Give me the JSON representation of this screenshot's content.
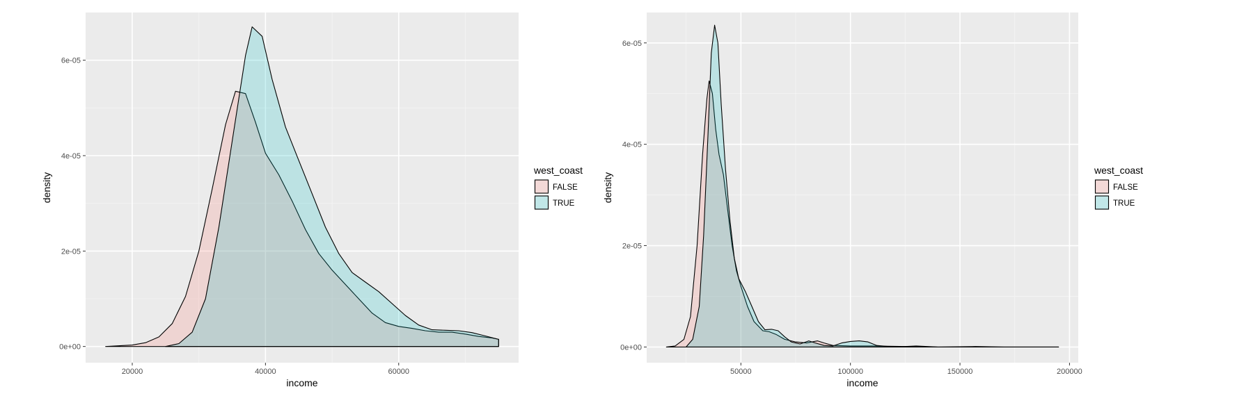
{
  "chart_data": [
    {
      "type": "area",
      "xlabel": "income",
      "ylabel": "density",
      "xlim": [
        13000,
        78000
      ],
      "ylim": [
        -3.4e-06,
        7e-05
      ],
      "xticks": [
        20000,
        40000,
        60000
      ],
      "xtick_labels": [
        "20000",
        "40000",
        "60000"
      ],
      "yticks": [
        0,
        2e-05,
        4e-05,
        6e-05
      ],
      "ytick_labels": [
        "0e+00",
        "2e-05",
        "4e-05",
        "6e-05"
      ],
      "grid": true,
      "legend": {
        "title": "west_coast",
        "placement": "right"
      },
      "series": [
        {
          "name": "FALSE",
          "color": "#F8766D",
          "points": [
            [
              16000,
              0.0
            ],
            [
              20000,
              3e-07
            ],
            [
              22000,
              8e-07
            ],
            [
              24000,
              2e-06
            ],
            [
              26000,
              4.8e-06
            ],
            [
              28000,
              1.05e-05
            ],
            [
              30000,
              2e-05
            ],
            [
              32000,
              3.3e-05
            ],
            [
              34000,
              4.65e-05
            ],
            [
              35500,
              5.35e-05
            ],
            [
              37000,
              5.3e-05
            ],
            [
              38500,
              4.7e-05
            ],
            [
              40000,
              4.05e-05
            ],
            [
              42000,
              3.6e-05
            ],
            [
              44000,
              3.05e-05
            ],
            [
              46000,
              2.45e-05
            ],
            [
              48000,
              1.95e-05
            ],
            [
              50000,
              1.6e-05
            ],
            [
              52000,
              1.3e-05
            ],
            [
              54000,
              1e-05
            ],
            [
              56000,
              7e-06
            ],
            [
              58000,
              5e-06
            ],
            [
              60000,
              4.2e-06
            ],
            [
              62000,
              3.8e-06
            ],
            [
              64000,
              3.3e-06
            ],
            [
              66000,
              3e-06
            ],
            [
              68000,
              3e-06
            ],
            [
              70000,
              2.6e-06
            ],
            [
              72000,
              2.1e-06
            ],
            [
              74000,
              1.8e-06
            ],
            [
              75000,
              1.5e-06
            ]
          ]
        },
        {
          "name": "TRUE",
          "color": "#00BFC4",
          "points": [
            [
              25000,
              0.0
            ],
            [
              27000,
              6e-07
            ],
            [
              29000,
              3e-06
            ],
            [
              31000,
              1e-05
            ],
            [
              33000,
              2.5e-05
            ],
            [
              35000,
              4.3e-05
            ],
            [
              37000,
              6.1e-05
            ],
            [
              38000,
              6.7e-05
            ],
            [
              39500,
              6.5e-05
            ],
            [
              41000,
              5.6e-05
            ],
            [
              43000,
              4.6e-05
            ],
            [
              45000,
              3.9e-05
            ],
            [
              47000,
              3.2e-05
            ],
            [
              49000,
              2.5e-05
            ],
            [
              51000,
              1.95e-05
            ],
            [
              53000,
              1.55e-05
            ],
            [
              55000,
              1.35e-05
            ],
            [
              57000,
              1.15e-05
            ],
            [
              59000,
              9e-06
            ],
            [
              61000,
              6.5e-06
            ],
            [
              63000,
              4.5e-06
            ],
            [
              65000,
              3.5e-06
            ],
            [
              67000,
              3.4e-06
            ],
            [
              69000,
              3.3e-06
            ],
            [
              71000,
              2.9e-06
            ],
            [
              73000,
              2.2e-06
            ],
            [
              75000,
              1.5e-06
            ]
          ]
        }
      ]
    },
    {
      "type": "area",
      "xlabel": "income",
      "ylabel": "density",
      "xlim": [
        7000,
        204000
      ],
      "ylim": [
        -3.1e-06,
        6.6e-05
      ],
      "xticks": [
        50000,
        100000,
        150000,
        200000
      ],
      "xtick_labels": [
        "50000",
        "100000",
        "150000",
        "200000"
      ],
      "yticks": [
        0,
        2e-05,
        4e-05,
        6e-05
      ],
      "ytick_labels": [
        "0e+00",
        "2e-05",
        "4e-05",
        "6e-05"
      ],
      "grid": true,
      "legend": {
        "title": "west_coast",
        "placement": "right"
      },
      "series": [
        {
          "name": "FALSE",
          "color": "#F8766D",
          "points": [
            [
              16000,
              0.0
            ],
            [
              20000,
              2e-07
            ],
            [
              24000,
              1.5e-06
            ],
            [
              27000,
              6e-06
            ],
            [
              30000,
              2e-05
            ],
            [
              32500,
              3.8e-05
            ],
            [
              34500,
              4.9e-05
            ],
            [
              35500,
              5.25e-05
            ],
            [
              37000,
              5e-05
            ],
            [
              38500,
              4.3e-05
            ],
            [
              40000,
              3.8e-05
            ],
            [
              42000,
              3.4e-05
            ],
            [
              44000,
              2.7e-05
            ],
            [
              46000,
              2e-05
            ],
            [
              48000,
              1.5e-05
            ],
            [
              50000,
              1.2e-05
            ],
            [
              53000,
              8e-06
            ],
            [
              56000,
              5e-06
            ],
            [
              60000,
              3.2e-06
            ],
            [
              63000,
              3e-06
            ],
            [
              66000,
              2.5e-06
            ],
            [
              70000,
              1.5e-06
            ],
            [
              75000,
              1e-06
            ],
            [
              80000,
              8e-07
            ],
            [
              85000,
              1.2e-06
            ],
            [
              88000,
              8e-07
            ],
            [
              92000,
              3e-07
            ],
            [
              100000,
              2e-07
            ],
            [
              110000,
              2e-07
            ],
            [
              125000,
              1e-07
            ],
            [
              140000,
              0.0
            ],
            [
              160000,
              0.0
            ],
            [
              195000,
              0.0
            ]
          ]
        },
        {
          "name": "TRUE",
          "color": "#00BFC4",
          "points": [
            [
              25000,
              0.0
            ],
            [
              28000,
              1.5e-06
            ],
            [
              31000,
              8e-06
            ],
            [
              33000,
              2.2e-05
            ],
            [
              35000,
              4.2e-05
            ],
            [
              36500,
              5.8e-05
            ],
            [
              38000,
              6.35e-05
            ],
            [
              39500,
              6e-05
            ],
            [
              41000,
              4.8e-05
            ],
            [
              43000,
              3.5e-05
            ],
            [
              45000,
              2.5e-05
            ],
            [
              47000,
              1.75e-05
            ],
            [
              49000,
              1.35e-05
            ],
            [
              52000,
              1.1e-05
            ],
            [
              55000,
              8e-06
            ],
            [
              58000,
              5e-06
            ],
            [
              61000,
              3.4e-06
            ],
            [
              64000,
              3.5e-06
            ],
            [
              67000,
              3.2e-06
            ],
            [
              70000,
              2e-06
            ],
            [
              73000,
              1e-06
            ],
            [
              77000,
              6e-07
            ],
            [
              81000,
              1.2e-06
            ],
            [
              84000,
              8e-07
            ],
            [
              88000,
              3e-07
            ],
            [
              92000,
              2e-07
            ],
            [
              96000,
              8e-07
            ],
            [
              100000,
              1.1e-06
            ],
            [
              104000,
              1.2e-06
            ],
            [
              108000,
              1e-06
            ],
            [
              112000,
              3e-07
            ],
            [
              120000,
              0.0
            ],
            [
              130000,
              2e-07
            ],
            [
              140000,
              0.0
            ],
            [
              157000,
              1e-07
            ],
            [
              170000,
              0.0
            ],
            [
              195000,
              0.0
            ]
          ]
        }
      ]
    }
  ]
}
